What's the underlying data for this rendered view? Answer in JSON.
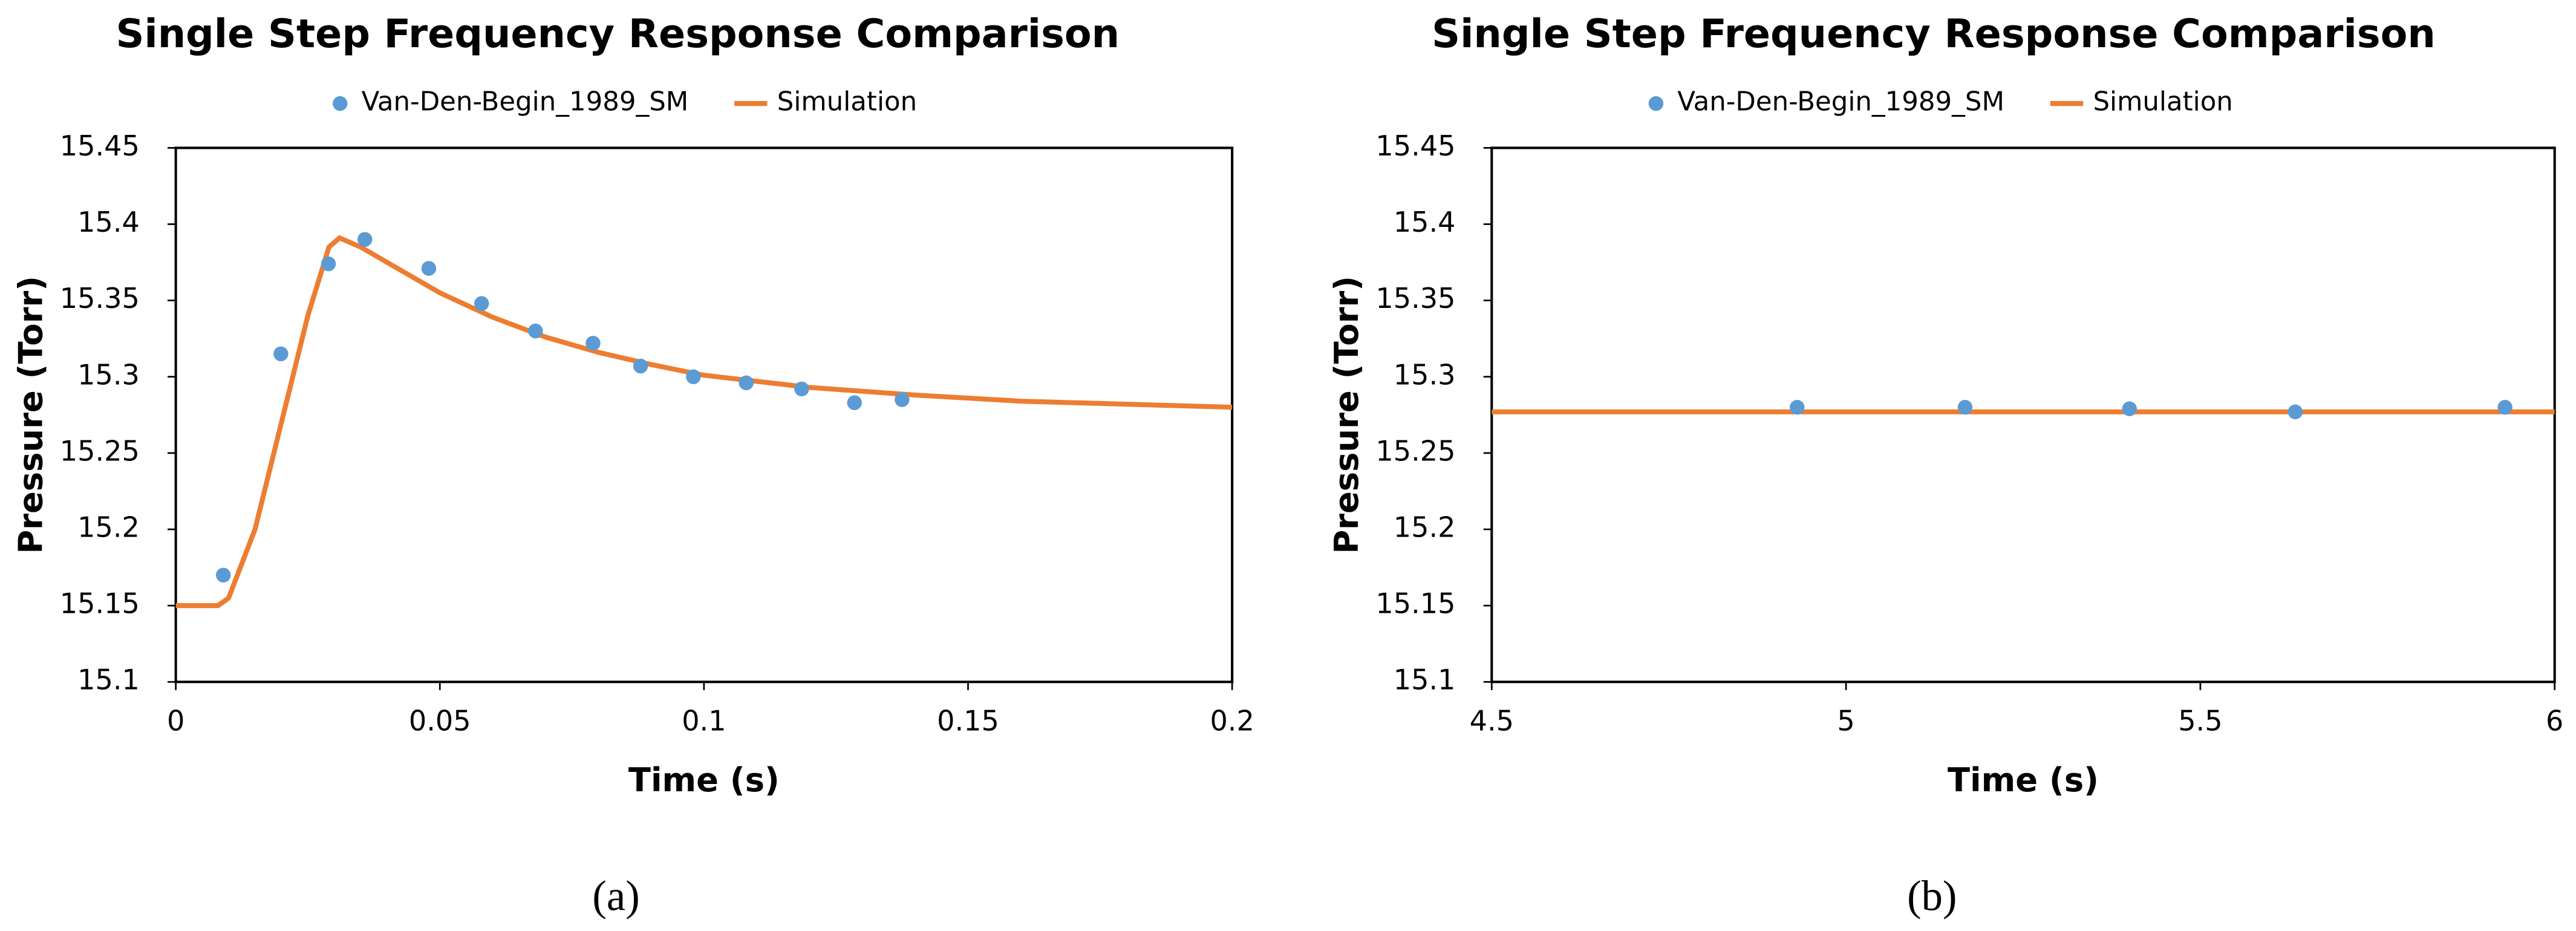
{
  "chart_data": [
    {
      "type": "line",
      "title": "Single Step Frequency Response Comparison",
      "x_label": "Time (s)",
      "y_label": "Pressure (Torr)",
      "label": "(a)",
      "xlim": [
        0,
        0.2
      ],
      "xticks": [
        0,
        0.05,
        0.1,
        0.15,
        0.2
      ],
      "ylim": [
        15.1,
        15.45
      ],
      "yticks": [
        15.1,
        15.15,
        15.2,
        15.25,
        15.3,
        15.35,
        15.4,
        15.45
      ],
      "series": [
        {
          "name": "Van-Den-Begin_1989_SM",
          "color": "#5b9bd5",
          "mode": "markers",
          "x": [
            0.009,
            0.0199,
            0.0289,
            0.0358,
            0.0479,
            0.0579,
            0.0681,
            0.079,
            0.088,
            0.098,
            0.108,
            0.1185,
            0.1285,
            0.1375
          ],
          "values": [
            15.17,
            15.315,
            15.374,
            15.39,
            15.371,
            15.348,
            15.33,
            15.322,
            15.307,
            15.3,
            15.296,
            15.292,
            15.283,
            15.285
          ]
        },
        {
          "name": "Simulation",
          "color": "#ed7d31",
          "mode": "lines",
          "x": [
            0,
            0.008,
            0.01,
            0.015,
            0.02,
            0.025,
            0.029,
            0.031,
            0.035,
            0.04,
            0.05,
            0.06,
            0.07,
            0.08,
            0.09,
            0.1,
            0.12,
            0.14,
            0.16,
            0.18,
            0.2
          ],
          "values": [
            15.15,
            15.15,
            15.155,
            15.2,
            15.27,
            15.34,
            15.385,
            15.391,
            15.385,
            15.375,
            15.355,
            15.339,
            15.326,
            15.316,
            15.308,
            15.301,
            15.293,
            15.288,
            15.284,
            15.282,
            15.28
          ]
        }
      ]
    },
    {
      "type": "line",
      "title": "Single Step Frequency Response Comparison",
      "x_label": "Time (s)",
      "y_label": "Pressure (Torr)",
      "label": "(b)",
      "xlim": [
        4.5,
        6
      ],
      "xticks": [
        4.5,
        5,
        5.5,
        6
      ],
      "ylim": [
        15.1,
        15.45
      ],
      "yticks": [
        15.1,
        15.15,
        15.2,
        15.25,
        15.3,
        15.35,
        15.4,
        15.45
      ],
      "series": [
        {
          "name": "Van-Den-Begin_1989_SM",
          "color": "#5b9bd5",
          "mode": "markers",
          "x": [
            4.931,
            5.168,
            5.4,
            5.634,
            5.93
          ],
          "values": [
            15.28,
            15.28,
            15.279,
            15.277,
            15.28
          ]
        },
        {
          "name": "Simulation",
          "color": "#ed7d31",
          "mode": "lines",
          "x": [
            4.5,
            6
          ],
          "values": [
            15.277,
            15.277
          ]
        }
      ]
    }
  ]
}
